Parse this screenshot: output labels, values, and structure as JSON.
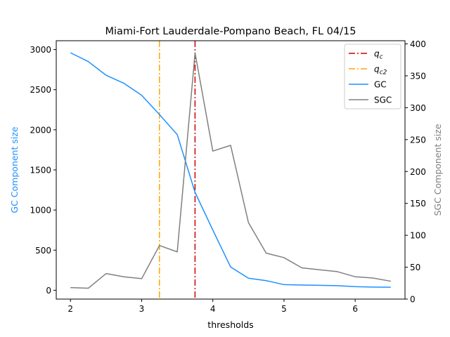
{
  "chart_data": {
    "type": "line",
    "title": "Miami-Fort Lauderdale-Pompano Beach, FL 04/15",
    "xlabel": "thresholds",
    "ylabel_left": "GC Component size",
    "ylabel_right": "SGC Component size",
    "xlim": [
      1.8,
      6.7
    ],
    "ylim_left": [
      -110,
      3110
    ],
    "ylim_right": [
      0,
      405
    ],
    "xticks": [
      2,
      3,
      4,
      5,
      6
    ],
    "yticks_left": [
      0,
      500,
      1000,
      1500,
      2000,
      2500,
      3000
    ],
    "yticks_right": [
      0,
      50,
      100,
      150,
      200,
      250,
      300,
      350,
      400
    ],
    "grid": false,
    "legend_position": "upper right",
    "colors": {
      "gc": "#1e90ff",
      "sgc": "#808080",
      "qc": "#cc0000",
      "qc2": "#ffa500",
      "gc_label": "#1e90ff",
      "sgc_label": "#808080"
    },
    "vlines": [
      {
        "name": "q_c",
        "x": 3.75,
        "color": "#cc0000",
        "label_main": "q",
        "label_sub": "c"
      },
      {
        "name": "q_c2",
        "x": 3.25,
        "color": "#ffa500",
        "label_main": "q",
        "label_sub": "c2"
      }
    ],
    "series": [
      {
        "name": "GC",
        "axis": "left",
        "color": "#1e90ff",
        "x": [
          2.0,
          2.25,
          2.5,
          2.75,
          3.0,
          3.25,
          3.5,
          3.75,
          4.0,
          4.25,
          4.5,
          4.75,
          5.0,
          5.25,
          5.5,
          5.75,
          6.0,
          6.25,
          6.5
        ],
        "values": [
          2960,
          2850,
          2680,
          2580,
          2430,
          2190,
          1940,
          1220,
          750,
          290,
          150,
          120,
          70,
          65,
          62,
          57,
          45,
          40,
          38
        ]
      },
      {
        "name": "SGC",
        "axis": "right",
        "color": "#808080",
        "x": [
          2.0,
          2.25,
          2.5,
          2.75,
          3.0,
          3.25,
          3.5,
          3.75,
          4.0,
          4.25,
          4.5,
          4.75,
          5.0,
          5.25,
          5.5,
          5.75,
          6.0,
          6.25,
          6.5
        ],
        "values": [
          18,
          17,
          40,
          35,
          32,
          84,
          74,
          386,
          232,
          241,
          120,
          72,
          65,
          49,
          46,
          43,
          35,
          33,
          28
        ]
      }
    ]
  }
}
